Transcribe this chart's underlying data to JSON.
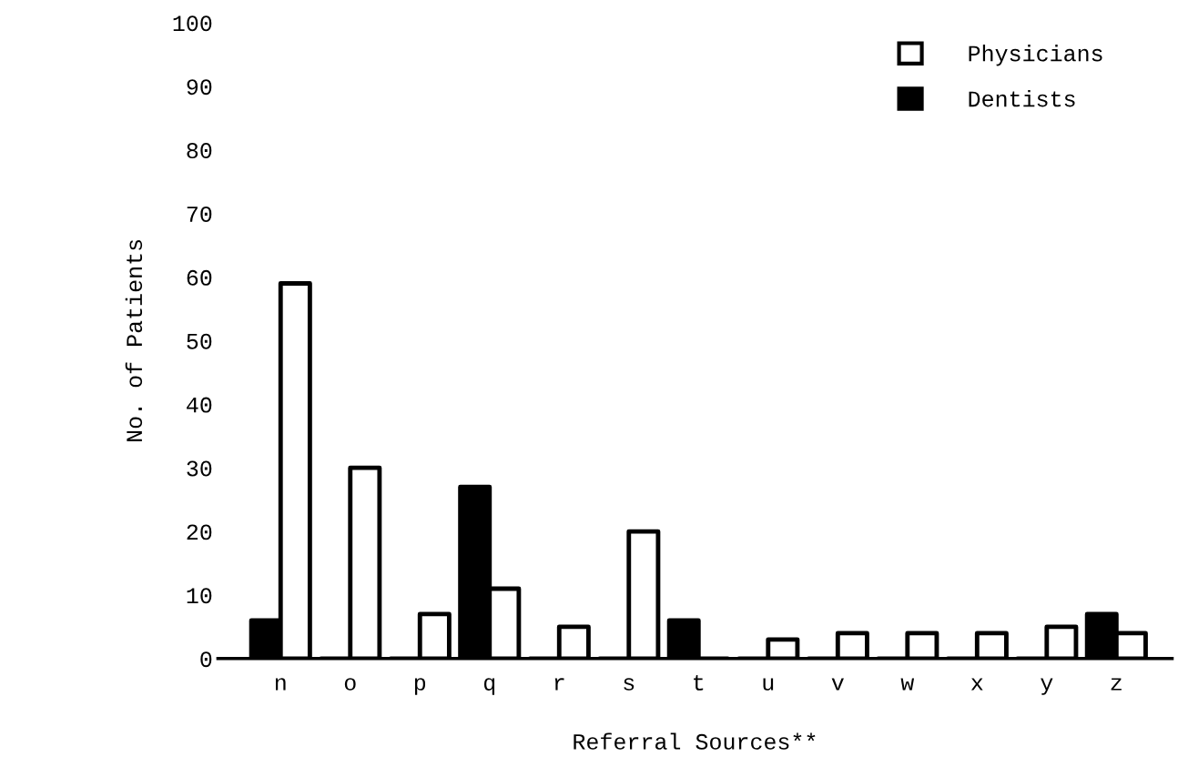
{
  "chart_data": {
    "type": "bar",
    "xlabel": "Referral Sources**",
    "ylabel": "No. of Patients",
    "categories": [
      "n",
      "o",
      "p",
      "q",
      "r",
      "s",
      "t",
      "u",
      "v",
      "w",
      "x",
      "y",
      "z"
    ],
    "series": [
      {
        "name": "Dentists",
        "color": "#000000",
        "values": [
          6,
          0,
          0,
          27,
          0,
          0,
          6,
          0,
          0,
          0,
          0,
          0,
          7
        ]
      },
      {
        "name": "Physicians",
        "color": "#ffffff",
        "values": [
          59,
          30,
          7,
          11,
          5,
          20,
          0,
          3,
          4,
          4,
          4,
          5,
          4
        ]
      }
    ],
    "ylim": [
      0,
      100
    ],
    "yticks": [
      0,
      10,
      20,
      30,
      40,
      50,
      60,
      70,
      80,
      90,
      100
    ],
    "grid": false,
    "legend": "top right"
  }
}
